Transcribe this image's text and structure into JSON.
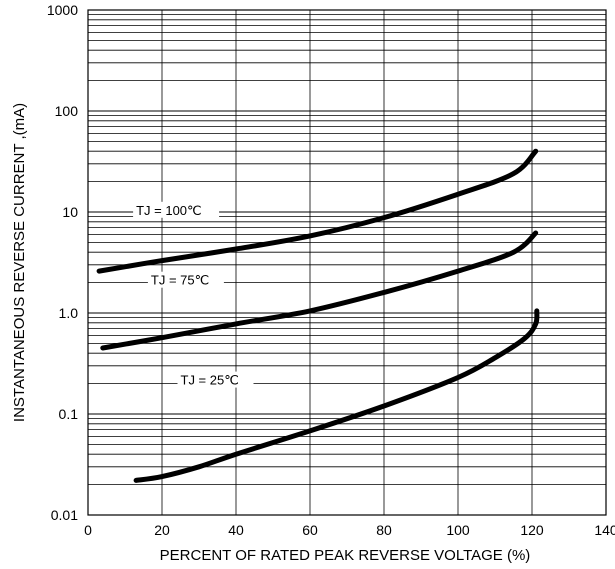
{
  "chart_data": {
    "type": "line",
    "title": "",
    "xlabel": "PERCENT OF RATED PEAK REVERSE VOLTAGE   (%)",
    "ylabel": "INSTANTANEOUS REVERSE CURRENT ,(mA)",
    "xlim": [
      0,
      140
    ],
    "ylim": [
      0.01,
      1000
    ],
    "yscale": "log",
    "grid": true,
    "x_ticks": [
      "0",
      "20",
      "40",
      "60",
      "80",
      "100",
      "120",
      "140"
    ],
    "y_ticks": [
      "0.01",
      "0.1",
      "1.0",
      "10",
      "100",
      "1000"
    ],
    "series": [
      {
        "name": "TJ = 100℃",
        "x": [
          3,
          20,
          40,
          60,
          80,
          100,
          115,
          121
        ],
        "y": [
          2.6,
          3.3,
          4.3,
          5.8,
          8.8,
          15,
          24,
          40
        ]
      },
      {
        "name": "TJ = 75℃",
        "x": [
          4,
          20,
          40,
          60,
          80,
          100,
          115,
          121
        ],
        "y": [
          0.45,
          0.57,
          0.78,
          1.05,
          1.6,
          2.6,
          4.0,
          6.2
        ]
      },
      {
        "name": "TJ = 25℃",
        "x": [
          13,
          20,
          30,
          40,
          60,
          80,
          100,
          110,
          118,
          121,
          121.3
        ],
        "y": [
          0.022,
          0.024,
          0.03,
          0.04,
          0.068,
          0.12,
          0.23,
          0.36,
          0.56,
          0.78,
          1.05
        ]
      }
    ]
  }
}
